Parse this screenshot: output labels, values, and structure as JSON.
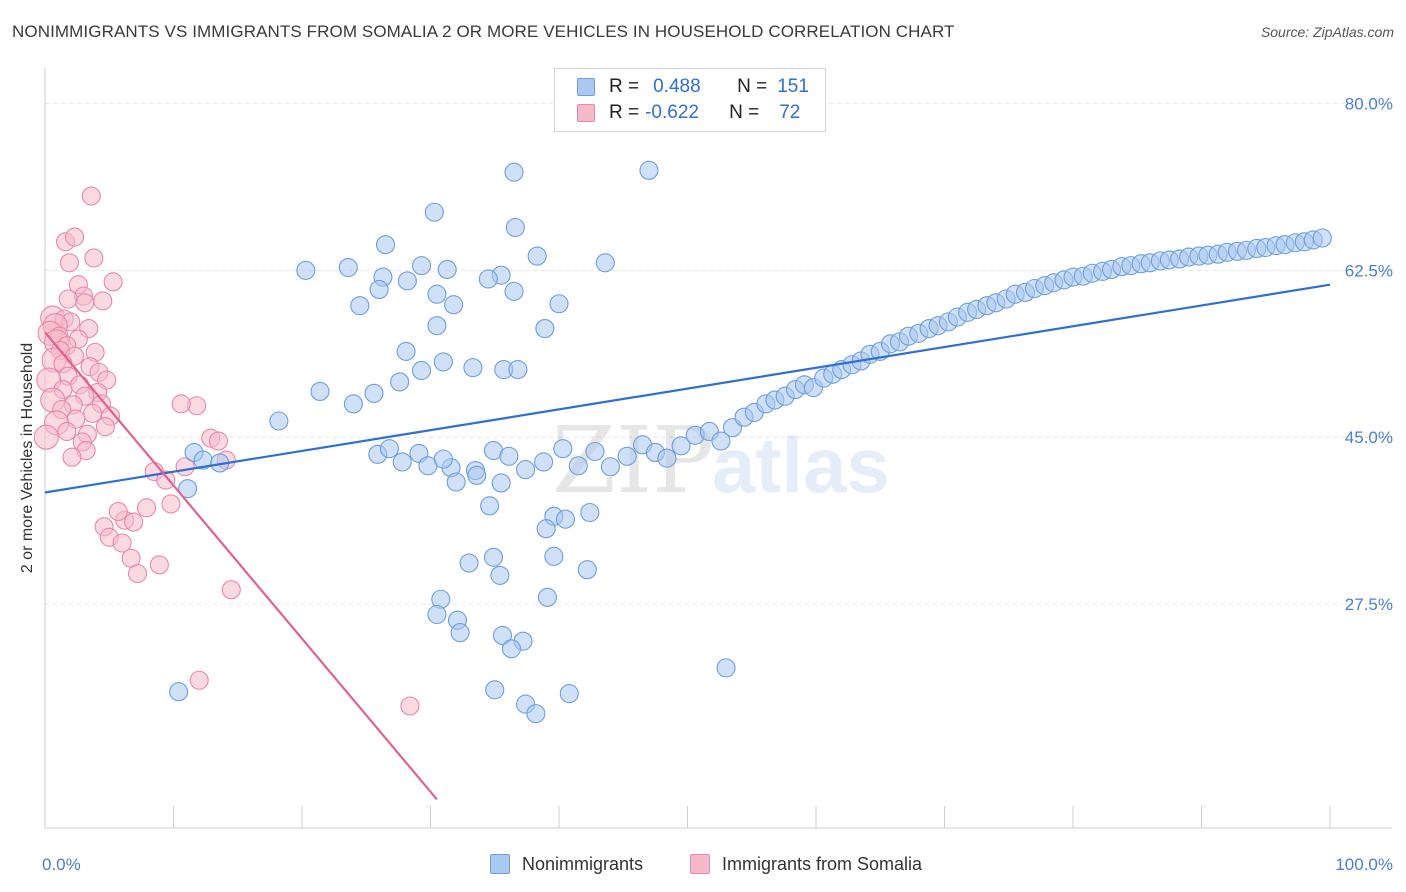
{
  "title": "NONIMMIGRANTS VS IMMIGRANTS FROM SOMALIA 2 OR MORE VEHICLES IN HOUSEHOLD CORRELATION CHART",
  "source": "Source: ZipAtlas.com",
  "watermark": {
    "zip": "ZIP",
    "atlas": "atlas"
  },
  "legend": {
    "rows": [
      {
        "r_label": "R =",
        "r_value": "0.488",
        "n_label": "N =",
        "n_value": "151"
      },
      {
        "r_label": "R =",
        "r_value": "-0.622",
        "n_label": "N =",
        "n_value": "72"
      }
    ]
  },
  "bottom_legend": {
    "series1": "Nonimmigrants",
    "series2": "Immigrants from Somalia"
  },
  "colors": {
    "blue_fill": "#aac8f0",
    "blue_stroke": "#6d9ede",
    "blue_line": "#2f6fcf",
    "pink_fill": "#f6b9cb",
    "pink_stroke": "#e889a6",
    "pink_line": "#e0628e"
  },
  "chart_data": {
    "type": "scatter",
    "title": "NONIMMIGRANTS VS IMMIGRANTS FROM SOMALIA 2 OR MORE VEHICLES IN HOUSEHOLD CORRELATION CHART",
    "xlabel": "",
    "ylabel": "2 or more Vehicles in Household",
    "xlim": [
      0,
      100
    ],
    "ylim": [
      4,
      83
    ],
    "x_tick_labels": [
      "0.0%",
      "100.0%"
    ],
    "y_ticks": [
      27.5,
      45.0,
      62.5,
      80.0
    ],
    "y_tick_labels": [
      "27.5%",
      "45.0%",
      "62.5%",
      "80.0%"
    ],
    "grid": true,
    "series": [
      {
        "name": "Nonimmigrants",
        "r": 0.488,
        "n": 151,
        "trend": {
          "x": [
            0,
            100
          ],
          "y": [
            39.2,
            61.0
          ]
        },
        "points": [
          [
            36.5,
            72.8
          ],
          [
            47.0,
            73.0
          ],
          [
            30.3,
            68.6
          ],
          [
            36.6,
            67.0
          ],
          [
            26.5,
            65.2
          ],
          [
            38.3,
            64.0
          ],
          [
            29.3,
            63.0
          ],
          [
            31.3,
            62.6
          ],
          [
            35.5,
            62.0
          ],
          [
            43.6,
            63.3
          ],
          [
            34.5,
            61.6
          ],
          [
            23.6,
            62.8
          ],
          [
            20.3,
            62.5
          ],
          [
            26.3,
            61.8
          ],
          [
            28.2,
            61.4
          ],
          [
            26.0,
            60.5
          ],
          [
            36.5,
            60.3
          ],
          [
            40.0,
            59.0
          ],
          [
            24.5,
            58.8
          ],
          [
            30.5,
            60.0
          ],
          [
            31.8,
            58.9
          ],
          [
            30.5,
            56.7
          ],
          [
            38.9,
            56.4
          ],
          [
            28.1,
            54.0
          ],
          [
            29.3,
            52.0
          ],
          [
            31.0,
            52.9
          ],
          [
            33.3,
            52.3
          ],
          [
            35.7,
            52.1
          ],
          [
            36.8,
            52.1
          ],
          [
            27.6,
            50.8
          ],
          [
            25.6,
            49.6
          ],
          [
            21.4,
            49.8
          ],
          [
            24.0,
            48.5
          ],
          [
            18.2,
            46.7
          ],
          [
            31.6,
            41.8
          ],
          [
            33.5,
            41.5
          ],
          [
            35.5,
            40.2
          ],
          [
            34.6,
            37.8
          ],
          [
            39.6,
            36.7
          ],
          [
            42.4,
            37.1
          ],
          [
            39.0,
            35.4
          ],
          [
            40.5,
            36.4
          ],
          [
            39.6,
            32.5
          ],
          [
            42.2,
            31.1
          ],
          [
            39.1,
            28.2
          ],
          [
            34.9,
            32.4
          ],
          [
            33.0,
            31.8
          ],
          [
            35.4,
            30.5
          ],
          [
            30.8,
            28.0
          ],
          [
            32.1,
            25.8
          ],
          [
            32.3,
            24.5
          ],
          [
            30.5,
            26.4
          ],
          [
            35.6,
            24.2
          ],
          [
            37.2,
            23.6
          ],
          [
            36.3,
            22.8
          ],
          [
            35.0,
            18.5
          ],
          [
            40.8,
            18.1
          ],
          [
            37.4,
            17.0
          ],
          [
            38.2,
            16.0
          ],
          [
            53.0,
            20.8
          ],
          [
            10.4,
            18.3
          ],
          [
            11.1,
            39.6
          ],
          [
            11.6,
            43.4
          ],
          [
            12.3,
            42.6
          ],
          [
            13.6,
            42.3
          ],
          [
            25.9,
            43.2
          ],
          [
            26.8,
            43.8
          ],
          [
            27.8,
            42.4
          ],
          [
            29.1,
            43.3
          ],
          [
            29.8,
            42.0
          ],
          [
            31.0,
            42.7
          ],
          [
            32.0,
            40.3
          ],
          [
            33.6,
            41.0
          ],
          [
            34.9,
            43.6
          ],
          [
            36.1,
            43.0
          ],
          [
            37.4,
            41.6
          ],
          [
            38.8,
            42.4
          ],
          [
            40.3,
            43.8
          ],
          [
            41.5,
            42.0
          ],
          [
            42.8,
            43.5
          ],
          [
            44.0,
            41.9
          ],
          [
            45.3,
            43.0
          ],
          [
            46.5,
            44.2
          ],
          [
            47.5,
            43.4
          ],
          [
            48.4,
            42.8
          ],
          [
            49.5,
            44.1
          ],
          [
            50.6,
            45.2
          ],
          [
            51.7,
            45.6
          ],
          [
            52.6,
            44.6
          ],
          [
            53.5,
            46.0
          ],
          [
            54.4,
            47.1
          ],
          [
            55.2,
            47.6
          ],
          [
            56.1,
            48.5
          ],
          [
            56.8,
            48.9
          ],
          [
            57.6,
            49.3
          ],
          [
            58.4,
            50.0
          ],
          [
            59.1,
            50.5
          ],
          [
            59.8,
            50.2
          ],
          [
            60.6,
            51.2
          ],
          [
            61.3,
            51.6
          ],
          [
            62.0,
            52.1
          ],
          [
            62.8,
            52.6
          ],
          [
            63.5,
            53.0
          ],
          [
            64.2,
            53.7
          ],
          [
            65.0,
            54.0
          ],
          [
            65.8,
            54.8
          ],
          [
            66.5,
            55.0
          ],
          [
            67.2,
            55.6
          ],
          [
            68.0,
            55.9
          ],
          [
            68.8,
            56.4
          ],
          [
            69.5,
            56.7
          ],
          [
            70.3,
            57.1
          ],
          [
            71.0,
            57.6
          ],
          [
            71.8,
            58.1
          ],
          [
            72.5,
            58.4
          ],
          [
            73.3,
            58.8
          ],
          [
            74.0,
            59.1
          ],
          [
            74.8,
            59.5
          ],
          [
            75.5,
            60.0
          ],
          [
            76.3,
            60.2
          ],
          [
            77.0,
            60.6
          ],
          [
            77.8,
            60.9
          ],
          [
            78.5,
            61.2
          ],
          [
            79.3,
            61.5
          ],
          [
            80.0,
            61.8
          ],
          [
            80.8,
            61.9
          ],
          [
            81.5,
            62.2
          ],
          [
            82.3,
            62.4
          ],
          [
            83.0,
            62.6
          ],
          [
            83.8,
            62.9
          ],
          [
            84.5,
            63.0
          ],
          [
            85.3,
            63.2
          ],
          [
            86.0,
            63.3
          ],
          [
            86.8,
            63.5
          ],
          [
            87.5,
            63.6
          ],
          [
            88.3,
            63.7
          ],
          [
            89.0,
            63.9
          ],
          [
            89.8,
            64.0
          ],
          [
            90.5,
            64.1
          ],
          [
            91.3,
            64.2
          ],
          [
            92.0,
            64.4
          ],
          [
            92.8,
            64.5
          ],
          [
            93.5,
            64.6
          ],
          [
            94.3,
            64.8
          ],
          [
            95.0,
            64.9
          ],
          [
            95.8,
            65.1
          ],
          [
            96.5,
            65.2
          ],
          [
            97.3,
            65.4
          ],
          [
            98.0,
            65.5
          ],
          [
            98.7,
            65.7
          ],
          [
            99.4,
            65.9
          ]
        ]
      },
      {
        "name": "Immigrants from Somalia",
        "r": -0.622,
        "n": 72,
        "trend": {
          "x": [
            0,
            30.5
          ],
          "y": [
            56.0,
            7.0
          ]
        },
        "points": [
          [
            3.6,
            70.3
          ],
          [
            1.6,
            65.5
          ],
          [
            2.3,
            66.0
          ],
          [
            3.8,
            63.8
          ],
          [
            1.9,
            63.3
          ],
          [
            5.3,
            61.3
          ],
          [
            2.6,
            61.0
          ],
          [
            3.0,
            59.8
          ],
          [
            1.8,
            59.5
          ],
          [
            4.5,
            59.3
          ],
          [
            3.1,
            59.1
          ],
          [
            0.6,
            57.5
          ],
          [
            1.5,
            57.4
          ],
          [
            2.0,
            57.1
          ],
          [
            0.8,
            56.7
          ],
          [
            3.4,
            56.4
          ],
          [
            0.4,
            55.9
          ],
          [
            1.1,
            55.6
          ],
          [
            2.6,
            55.3
          ],
          [
            0.9,
            55.0
          ],
          [
            1.7,
            54.6
          ],
          [
            1.2,
            54.1
          ],
          [
            3.9,
            53.9
          ],
          [
            2.3,
            53.5
          ],
          [
            0.7,
            53.1
          ],
          [
            1.4,
            52.7
          ],
          [
            3.5,
            52.4
          ],
          [
            4.2,
            51.8
          ],
          [
            1.8,
            51.4
          ],
          [
            0.3,
            51.0
          ],
          [
            4.8,
            51.0
          ],
          [
            2.7,
            50.5
          ],
          [
            1.4,
            50.0
          ],
          [
            4.1,
            49.7
          ],
          [
            3.1,
            49.3
          ],
          [
            0.6,
            48.9
          ],
          [
            2.2,
            48.4
          ],
          [
            4.4,
            48.5
          ],
          [
            1.3,
            47.9
          ],
          [
            3.7,
            47.5
          ],
          [
            5.1,
            47.2
          ],
          [
            2.4,
            46.9
          ],
          [
            0.9,
            46.5
          ],
          [
            4.7,
            46.1
          ],
          [
            1.7,
            45.6
          ],
          [
            3.3,
            45.3
          ],
          [
            0.1,
            45.0
          ],
          [
            2.9,
            44.5
          ],
          [
            11.8,
            48.3
          ],
          [
            12.9,
            44.9
          ],
          [
            13.5,
            44.6
          ],
          [
            10.6,
            48.5
          ],
          [
            8.5,
            41.4
          ],
          [
            9.8,
            38.0
          ],
          [
            7.9,
            37.6
          ],
          [
            6.2,
            36.3
          ],
          [
            4.6,
            35.6
          ],
          [
            5.0,
            34.5
          ],
          [
            6.0,
            33.9
          ],
          [
            6.7,
            32.3
          ],
          [
            7.2,
            30.7
          ],
          [
            5.7,
            37.2
          ],
          [
            6.9,
            36.1
          ],
          [
            9.4,
            40.5
          ],
          [
            10.9,
            41.9
          ],
          [
            14.1,
            42.6
          ],
          [
            14.5,
            29.0
          ],
          [
            8.9,
            31.6
          ],
          [
            12.0,
            19.5
          ],
          [
            28.4,
            16.8
          ],
          [
            3.2,
            43.6
          ],
          [
            2.1,
            42.9
          ]
        ]
      }
    ]
  }
}
